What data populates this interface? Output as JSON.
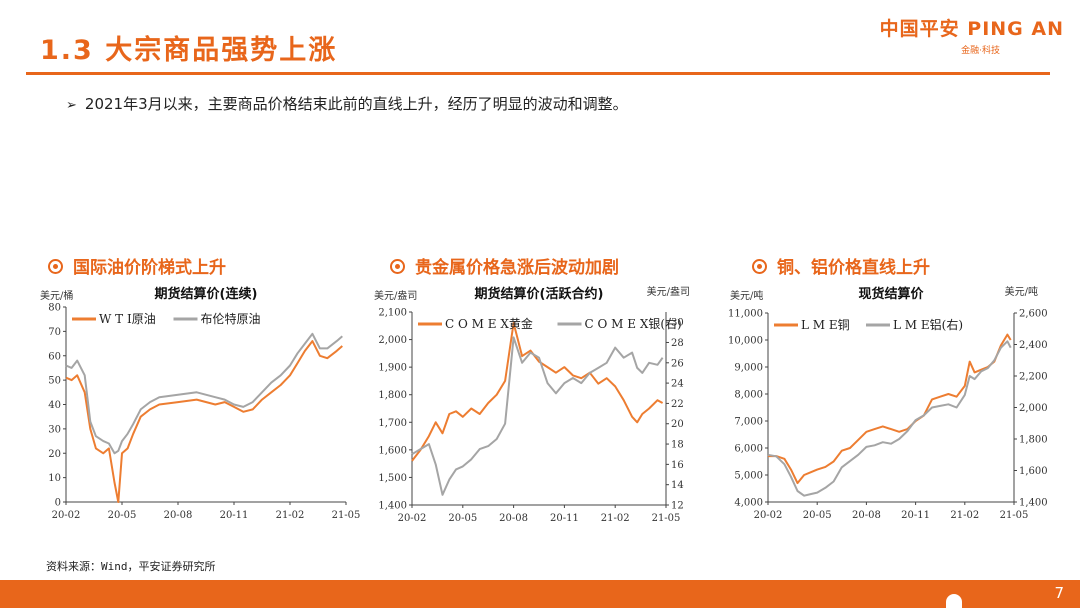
{
  "header": {
    "title": "1.3 大宗商品强势上涨",
    "logo_main": "中国平安 PING AN",
    "logo_sub": "金融·科技"
  },
  "bullet": "2021年3月以来，主要商品价格结束此前的直线上升，经历了明显的波动和调整。",
  "sections": [
    {
      "label": "国际油价阶梯式上升",
      "icon": "circle-dot-icon"
    },
    {
      "label": "贵金属价格急涨后波动加剧",
      "icon": "circle-dot-icon"
    },
    {
      "label": "铜、铝价格直线上升",
      "icon": "circle-dot-icon"
    }
  ],
  "source": "资料来源：Wind，平安证券研究所",
  "page_number": "7",
  "colors": {
    "accent": "#E8661B",
    "orange_series": "#ED7D31",
    "gray_series": "#A5A5A5"
  },
  "chart_data": [
    {
      "type": "line",
      "title": "期货结算价(连续)",
      "ylabel_left": "美元/桶",
      "ylim_left": [
        0,
        80
      ],
      "yticks_left": [
        "0",
        "10",
        "20",
        "30",
        "40",
        "50",
        "60",
        "70",
        "80"
      ],
      "xlim": [
        0,
        15
      ],
      "xtick_labels": [
        "20-02",
        "20-05",
        "20-08",
        "20-11",
        "21-02",
        "21-05"
      ],
      "legend": [
        "W T I原油",
        "布伦特原油"
      ],
      "series": [
        {
          "name": "W T I原油",
          "axis": "left",
          "x": [
            0,
            0.3,
            0.6,
            1.0,
            1.3,
            1.6,
            2.0,
            2.3,
            2.6,
            2.8,
            3.0,
            3.3,
            3.6,
            4.0,
            4.5,
            5.0,
            6.0,
            7.0,
            8.0,
            8.5,
            9.0,
            9.5,
            10.0,
            10.5,
            11.0,
            11.5,
            12.0,
            12.4,
            12.8,
            13.2,
            13.6,
            14.0,
            14.5,
            14.8
          ],
          "y": [
            51,
            50,
            52,
            45,
            30,
            22,
            20,
            22,
            8,
            0,
            20,
            22,
            28,
            35,
            38,
            40,
            41,
            42,
            40,
            41,
            39,
            37,
            38,
            42,
            45,
            48,
            52,
            57,
            62,
            66,
            60,
            59,
            62,
            64
          ]
        },
        {
          "name": "布伦特原油",
          "axis": "left",
          "x": [
            0,
            0.3,
            0.6,
            1.0,
            1.3,
            1.6,
            2.0,
            2.3,
            2.6,
            2.8,
            3.0,
            3.3,
            3.6,
            4.0,
            4.5,
            5.0,
            6.0,
            7.0,
            8.0,
            8.5,
            9.0,
            9.5,
            10.0,
            10.5,
            11.0,
            11.5,
            12.0,
            12.4,
            12.8,
            13.2,
            13.6,
            14.0,
            14.5,
            14.8
          ],
          "y": [
            56,
            55,
            58,
            52,
            33,
            27,
            25,
            24,
            20,
            21,
            25,
            28,
            32,
            38,
            41,
            43,
            44,
            45,
            43,
            42,
            40,
            39,
            41,
            45,
            49,
            52,
            56,
            61,
            65,
            69,
            63,
            63,
            66,
            68
          ]
        }
      ]
    },
    {
      "type": "line",
      "title": "期货结算价(活跃合约)",
      "ylabel_left": "美元/盎司",
      "ylabel_right": "美元/盎司",
      "ylim_left": [
        1400,
        2100
      ],
      "ylim_right": [
        12,
        31
      ],
      "yticks_left": [
        "1,400",
        "1,500",
        "1,600",
        "1,700",
        "1,800",
        "1,900",
        "2,000",
        "2,100"
      ],
      "yticks_right": [
        "12",
        "14",
        "16",
        "18",
        "20",
        "22",
        "24",
        "26",
        "28",
        "30"
      ],
      "xlim": [
        0,
        15
      ],
      "xtick_labels": [
        "20-02",
        "20-05",
        "20-08",
        "20-11",
        "21-02",
        "21-05"
      ],
      "legend": [
        "C O M E X黄金",
        "C O M E X银(右)"
      ],
      "series": [
        {
          "name": "C O M E X黄金",
          "axis": "left",
          "x": [
            0,
            0.5,
            1.0,
            1.4,
            1.8,
            2.2,
            2.6,
            3.0,
            3.5,
            4.0,
            4.5,
            5.0,
            5.5,
            6.0,
            6.5,
            7.0,
            7.5,
            8.0,
            8.5,
            9.0,
            9.5,
            10.0,
            10.5,
            11.0,
            11.5,
            12.0,
            12.5,
            13.0,
            13.3,
            13.6,
            14.0,
            14.5,
            14.8
          ],
          "y": [
            1560,
            1600,
            1650,
            1700,
            1660,
            1730,
            1740,
            1720,
            1750,
            1730,
            1770,
            1800,
            1850,
            2060,
            1940,
            1960,
            1920,
            1900,
            1880,
            1900,
            1870,
            1860,
            1880,
            1840,
            1860,
            1830,
            1780,
            1720,
            1700,
            1730,
            1750,
            1780,
            1770
          ]
        },
        {
          "name": "C O M E X银(右)",
          "axis": "right",
          "x": [
            0,
            0.5,
            1.0,
            1.4,
            1.8,
            2.2,
            2.6,
            3.0,
            3.5,
            4.0,
            4.5,
            5.0,
            5.5,
            6.0,
            6.5,
            7.0,
            7.5,
            8.0,
            8.5,
            9.0,
            9.5,
            10.0,
            10.5,
            11.0,
            11.5,
            12.0,
            12.5,
            13.0,
            13.3,
            13.6,
            14.0,
            14.5,
            14.8
          ],
          "y": [
            17,
            17.5,
            18,
            16,
            13,
            14.5,
            15.5,
            15.8,
            16.5,
            17.5,
            17.8,
            18.5,
            20,
            28.5,
            26,
            27,
            26.5,
            24,
            23,
            24,
            24.5,
            24,
            25,
            25.5,
            26,
            27.5,
            26.5,
            27,
            25.5,
            25,
            26,
            25.8,
            26.5
          ]
        }
      ]
    },
    {
      "type": "line",
      "title": "现货结算价",
      "ylabel_left": "美元/吨",
      "ylabel_right": "美元/吨",
      "ylim_left": [
        4000,
        11000
      ],
      "ylim_right": [
        1400,
        2600
      ],
      "yticks_left": [
        "4,000",
        "5,000",
        "6,000",
        "7,000",
        "8,000",
        "9,000",
        "10,000",
        "11,000"
      ],
      "yticks_right": [
        "1,400",
        "1,600",
        "1,800",
        "2,000",
        "2,200",
        "2,400",
        "2,600"
      ],
      "xlim": [
        0,
        15
      ],
      "xtick_labels": [
        "20-02",
        "20-05",
        "20-08",
        "20-11",
        "21-02",
        "21-05"
      ],
      "legend": [
        "L M E铜",
        "L M E铝(右)"
      ],
      "series": [
        {
          "name": "L M E铜",
          "axis": "left",
          "x": [
            0,
            0.5,
            1.0,
            1.4,
            1.8,
            2.2,
            2.6,
            3.0,
            3.5,
            4.0,
            4.5,
            5.0,
            5.5,
            6.0,
            6.5,
            7.0,
            7.5,
            8.0,
            8.5,
            9.0,
            9.5,
            10.0,
            10.5,
            11.0,
            11.5,
            12.0,
            12.3,
            12.6,
            13.0,
            13.4,
            13.8,
            14.2,
            14.6,
            14.8
          ],
          "y": [
            5700,
            5700,
            5600,
            5200,
            4700,
            5000,
            5100,
            5200,
            5300,
            5500,
            5900,
            6000,
            6300,
            6600,
            6700,
            6800,
            6700,
            6600,
            6700,
            7000,
            7200,
            7800,
            7900,
            8000,
            7900,
            8300,
            9200,
            8800,
            8900,
            9000,
            9200,
            9800,
            10200,
            10000
          ]
        },
        {
          "name": "L M E铝(右)",
          "axis": "right",
          "x": [
            0,
            0.5,
            1.0,
            1.4,
            1.8,
            2.2,
            2.6,
            3.0,
            3.5,
            4.0,
            4.5,
            5.0,
            5.5,
            6.0,
            6.5,
            7.0,
            7.5,
            8.0,
            8.5,
            9.0,
            9.5,
            10.0,
            10.5,
            11.0,
            11.5,
            12.0,
            12.3,
            12.6,
            13.0,
            13.4,
            13.8,
            14.2,
            14.6,
            14.8
          ],
          "y": [
            1700,
            1690,
            1640,
            1560,
            1470,
            1440,
            1450,
            1460,
            1490,
            1530,
            1620,
            1660,
            1700,
            1750,
            1760,
            1780,
            1770,
            1800,
            1850,
            1920,
            1950,
            2000,
            2010,
            2020,
            2000,
            2080,
            2200,
            2180,
            2230,
            2250,
            2300,
            2380,
            2420,
            2380
          ]
        }
      ]
    }
  ]
}
